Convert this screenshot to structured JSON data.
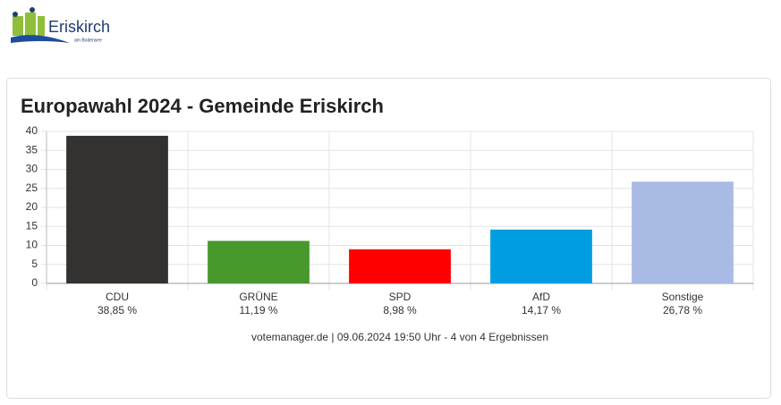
{
  "header": {
    "logo_title": "Eriskirch",
    "logo_subtitle": "am Bodensee"
  },
  "chart_data": {
    "type": "bar",
    "title": "Europawahl 2024 - Gemeinde Eriskirch",
    "categories": [
      "CDU",
      "GRÜNE",
      "SPD",
      "AfD",
      "Sonstige"
    ],
    "values": [
      38.85,
      11.19,
      8.98,
      14.17,
      26.78
    ],
    "value_labels": [
      "38,85 %",
      "11,19 %",
      "8,98 %",
      "14,17 %",
      "26,78 %"
    ],
    "colors": [
      "#333231",
      "#48982c",
      "#ff0000",
      "#009ee0",
      "#a9bbe5"
    ],
    "ylim": [
      0,
      40
    ],
    "yticks": [
      0,
      5,
      10,
      15,
      20,
      25,
      30,
      35,
      40
    ],
    "grid": true,
    "footer": "votemanager.de | 09.06.2024 19:50 Uhr - 4 von 4 Ergebnissen"
  }
}
